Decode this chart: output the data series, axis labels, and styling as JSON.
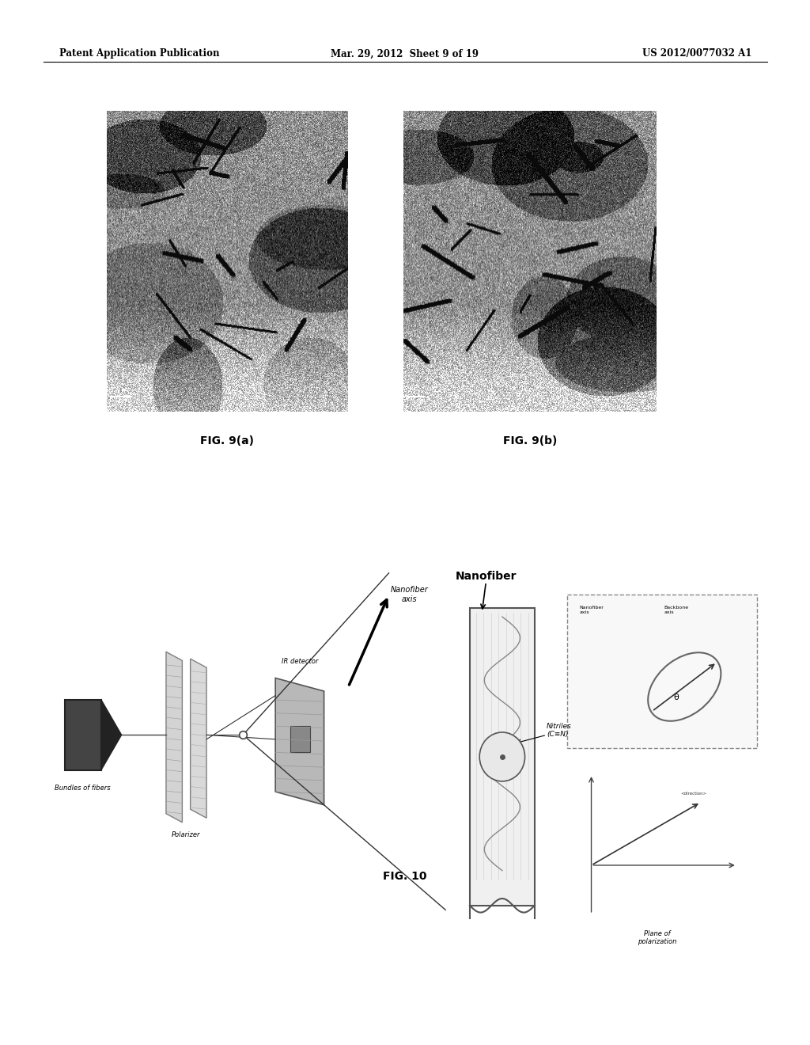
{
  "bg_color": "#ffffff",
  "header_left": "Patent Application Publication",
  "header_center": "Mar. 29, 2012  Sheet 9 of 19",
  "header_right": "US 2012/0077032 A1",
  "fig9a_label": "FIG. 9(a)",
  "fig9b_label": "FIG. 9(b)",
  "fig10_label": "FIG. 10",
  "labels": {
    "bundles_of_fibers": "Bundles of fibers",
    "ir_detector": "IR detector",
    "nanofiber_axis": "Nanofiber\naxis",
    "polarizer": "Polarizer",
    "nanofiber": "Nanofiber",
    "nitriles": "Nitriles\n(C≡N)",
    "plane_of_polarization": "Plane of\npolarization",
    "nanofiber_axis2": "Nanofiber\naxis",
    "backbone_axis": "Backbone\naxis"
  }
}
